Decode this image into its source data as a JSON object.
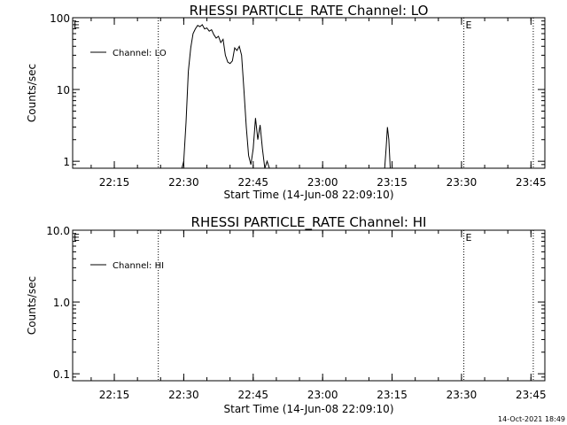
{
  "footer": {
    "timestamp": "14-Oct-2021 18:49"
  },
  "chart_data": [
    {
      "type": "line",
      "title": "RHESSI PARTICLE_RATE Channel: LO",
      "xlabel": "Start Time (14-Jun-08 22:09:10)",
      "ylabel": "Counts/sec",
      "yscale": "log",
      "xlim": [
        "22:06",
        "23:48"
      ],
      "ylim": [
        0.8,
        100
      ],
      "xticks": [
        "22:15",
        "22:30",
        "22:45",
        "23:00",
        "23:15",
        "23:30",
        "23:45"
      ],
      "yticks": [
        "1",
        "10",
        "100"
      ],
      "legend": {
        "placement": "top-left",
        "entries": [
          "Channel: LO"
        ]
      },
      "vlines": [
        {
          "time": "22:24.5",
          "style": "dotted",
          "label": ""
        },
        {
          "time": "23:30.5",
          "style": "dotted",
          "label": "E"
        },
        {
          "time": "23:45.5",
          "style": "dotted",
          "label": ""
        }
      ],
      "edge_labels": [
        "E"
      ],
      "series": [
        {
          "name": "Channel: LO",
          "x": [
            "22:29.6",
            "22:30",
            "22:30.5",
            "22:31",
            "22:31.5",
            "22:32",
            "22:32.5",
            "22:33",
            "22:33.5",
            "22:34",
            "22:34.5",
            "22:35",
            "22:35.5",
            "22:36",
            "22:36.5",
            "22:37",
            "22:37.5",
            "22:38",
            "22:38.5",
            "22:39",
            "22:39.5",
            "22:40",
            "22:40.5",
            "22:41",
            "22:41.5",
            "22:42",
            "22:42.5",
            "22:43",
            "22:43.5",
            "22:44",
            "22:44.5",
            "22:45",
            "22:45.5",
            "22:46",
            "22:46.5",
            "22:47",
            "22:47.5",
            "22:48",
            "22:48.5",
            "22:49",
            "22:49.5",
            "23:13.4",
            "23:13.7",
            "23:14",
            "23:14.3",
            "23:14.6"
          ],
          "y": [
            0.8,
            1.0,
            3.5,
            18,
            38,
            60,
            70,
            78,
            75,
            80,
            70,
            72,
            65,
            68,
            58,
            52,
            55,
            45,
            50,
            30,
            24,
            23,
            25,
            38,
            35,
            40,
            30,
            10,
            3.0,
            1.2,
            0.9,
            1.5,
            4.0,
            2.0,
            3.2,
            1.5,
            0.8,
            1.0,
            0.8,
            0.8,
            0.8,
            0.8,
            1.5,
            3.0,
            2.0,
            0.8
          ]
        }
      ]
    },
    {
      "type": "line",
      "title": "RHESSI PARTICLE_RATE Channel: HI",
      "xlabel": "Start Time (14-Jun-08 22:09:10)",
      "ylabel": "Counts/sec",
      "yscale": "log",
      "xlim": [
        "22:06",
        "23:48"
      ],
      "ylim": [
        0.08,
        10
      ],
      "xticks": [
        "22:15",
        "22:30",
        "22:45",
        "23:00",
        "23:15",
        "23:30",
        "23:45"
      ],
      "yticks": [
        "0.1",
        "1.0",
        "10.0"
      ],
      "legend": {
        "placement": "top-left",
        "entries": [
          "Channel: HI"
        ]
      },
      "vlines": [
        {
          "time": "22:24.5",
          "style": "dotted",
          "label": ""
        },
        {
          "time": "23:30.5",
          "style": "dotted",
          "label": "E"
        },
        {
          "time": "23:45.5",
          "style": "dotted",
          "label": ""
        }
      ],
      "edge_labels": [
        "E"
      ],
      "series": [
        {
          "name": "Channel: HI",
          "x": [],
          "y": []
        }
      ]
    }
  ]
}
